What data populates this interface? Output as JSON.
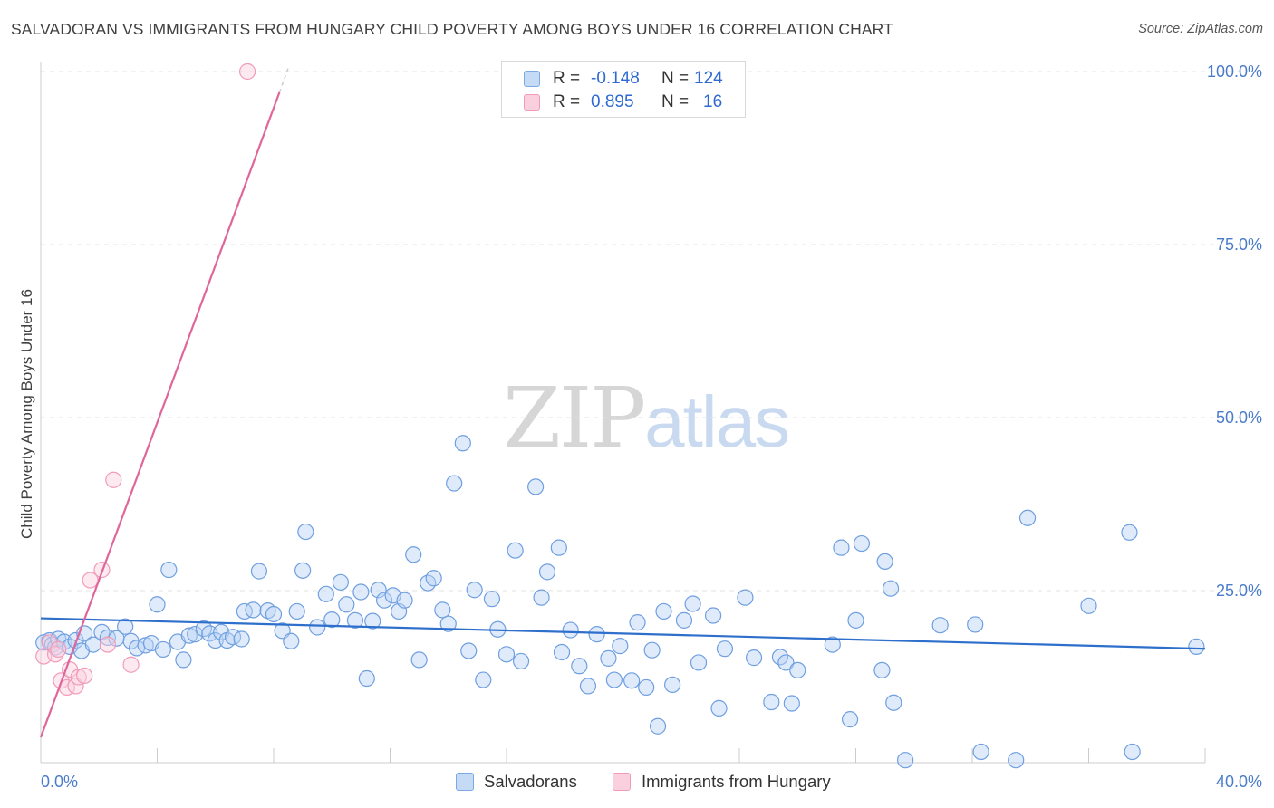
{
  "title": "SALVADORAN VS IMMIGRANTS FROM HUNGARY CHILD POVERTY AMONG BOYS UNDER 16 CORRELATION CHART",
  "source": "Source: ZipAtlas.com",
  "watermark": {
    "zip": "ZIP",
    "atlas": "atlas"
  },
  "legend": {
    "rows": [
      {
        "r_label": "R =",
        "r_value": "-0.148",
        "n_label": "N =",
        "n_value": "124",
        "color": "#7aaae6",
        "fill": "#c5daf5"
      },
      {
        "r_label": "R =",
        "r_value": "0.895",
        "n_label": "N =",
        "n_value": "16",
        "color": "#f29ab8",
        "fill": "#fbd0de"
      }
    ]
  },
  "bottom_legend": [
    "Salvadorans",
    "Immigrants from Hungary"
  ],
  "chart_data": {
    "type": "scatter",
    "title": "SALVADORAN VS IMMIGRANTS FROM HUNGARY CHILD POVERTY AMONG BOYS UNDER 16 CORRELATION CHART",
    "xlabel": "",
    "ylabel": "Child Poverty Among Boys Under 16",
    "xlim": [
      0,
      40
    ],
    "ylim": [
      0,
      105
    ],
    "x_tick_labels": [
      "0.0%",
      "40.0%"
    ],
    "y_ticks": [
      25,
      50,
      75,
      100
    ],
    "y_tick_labels": [
      "25.0%",
      "50.0%",
      "75.0%",
      "100.0%"
    ],
    "grid": true,
    "legend_position": "top-center",
    "series": [
      {
        "name": "Salvadorans",
        "color": "#6f9fe0",
        "trend": {
          "x": [
            0,
            40
          ],
          "y": [
            21.0,
            16.6
          ],
          "color": "#2e6fcc"
        },
        "points": [
          [
            0.1,
            17.5
          ],
          [
            0.3,
            17.8
          ],
          [
            0.4,
            17.2
          ],
          [
            0.5,
            16.8
          ],
          [
            0.6,
            18.0
          ],
          [
            0.8,
            17.6
          ],
          [
            1.0,
            16.9
          ],
          [
            1.2,
            17.8
          ],
          [
            1.4,
            16.3
          ],
          [
            1.5,
            18.8
          ],
          [
            1.8,
            17.2
          ],
          [
            2.1,
            19.0
          ],
          [
            2.3,
            18.2
          ],
          [
            2.6,
            18.1
          ],
          [
            2.9,
            19.8
          ],
          [
            3.1,
            17.7
          ],
          [
            3.3,
            16.7
          ],
          [
            3.6,
            17.1
          ],
          [
            3.8,
            17.4
          ],
          [
            4.0,
            23.0
          ],
          [
            4.2,
            16.5
          ],
          [
            4.4,
            28.0
          ],
          [
            4.7,
            17.6
          ],
          [
            4.9,
            15.0
          ],
          [
            5.1,
            18.5
          ],
          [
            5.3,
            18.7
          ],
          [
            5.6,
            19.5
          ],
          [
            5.8,
            18.8
          ],
          [
            6.0,
            17.8
          ],
          [
            6.2,
            19.0
          ],
          [
            6.4,
            17.8
          ],
          [
            6.6,
            18.3
          ],
          [
            6.9,
            18.0
          ],
          [
            7.0,
            22.0
          ],
          [
            7.3,
            22.2
          ],
          [
            7.5,
            27.8
          ],
          [
            7.8,
            22.1
          ],
          [
            8.0,
            21.6
          ],
          [
            8.3,
            19.2
          ],
          [
            8.6,
            17.7
          ],
          [
            8.8,
            22.0
          ],
          [
            9.0,
            27.9
          ],
          [
            9.1,
            33.5
          ],
          [
            9.5,
            19.7
          ],
          [
            9.8,
            24.5
          ],
          [
            10.0,
            20.8
          ],
          [
            10.3,
            26.2
          ],
          [
            10.5,
            23.0
          ],
          [
            10.8,
            20.7
          ],
          [
            11.0,
            24.8
          ],
          [
            11.2,
            12.3
          ],
          [
            11.4,
            20.6
          ],
          [
            11.6,
            25.1
          ],
          [
            11.8,
            23.6
          ],
          [
            12.1,
            24.3
          ],
          [
            12.3,
            22.0
          ],
          [
            12.5,
            23.6
          ],
          [
            12.8,
            30.2
          ],
          [
            13.0,
            15.0
          ],
          [
            13.3,
            26.1
          ],
          [
            13.5,
            26.8
          ],
          [
            13.8,
            22.2
          ],
          [
            14.0,
            20.2
          ],
          [
            14.2,
            40.5
          ],
          [
            14.5,
            46.3
          ],
          [
            14.7,
            16.3
          ],
          [
            14.9,
            25.1
          ],
          [
            15.2,
            12.1
          ],
          [
            15.5,
            23.8
          ],
          [
            15.7,
            19.4
          ],
          [
            16.0,
            15.8
          ],
          [
            16.3,
            30.8
          ],
          [
            16.5,
            14.8
          ],
          [
            17.0,
            40.0
          ],
          [
            17.2,
            24.0
          ],
          [
            17.4,
            27.7
          ],
          [
            17.8,
            31.2
          ],
          [
            17.9,
            16.1
          ],
          [
            18.2,
            19.3
          ],
          [
            18.5,
            14.1
          ],
          [
            18.8,
            11.2
          ],
          [
            19.1,
            18.7
          ],
          [
            19.5,
            15.2
          ],
          [
            19.7,
            12.1
          ],
          [
            19.9,
            17.0
          ],
          [
            20.3,
            12.0
          ],
          [
            20.5,
            20.4
          ],
          [
            20.8,
            11.0
          ],
          [
            21.0,
            16.4
          ],
          [
            21.2,
            5.4
          ],
          [
            21.4,
            22.0
          ],
          [
            21.7,
            11.4
          ],
          [
            22.1,
            20.7
          ],
          [
            22.4,
            23.1
          ],
          [
            22.6,
            14.6
          ],
          [
            23.1,
            21.4
          ],
          [
            23.3,
            8.0
          ],
          [
            23.5,
            16.6
          ],
          [
            24.2,
            24.0
          ],
          [
            24.5,
            15.3
          ],
          [
            25.1,
            8.9
          ],
          [
            25.4,
            15.4
          ],
          [
            25.6,
            14.6
          ],
          [
            25.8,
            8.7
          ],
          [
            26.0,
            13.5
          ],
          [
            27.2,
            17.2
          ],
          [
            27.5,
            31.2
          ],
          [
            27.8,
            6.4
          ],
          [
            28.0,
            20.7
          ],
          [
            28.2,
            31.8
          ],
          [
            28.9,
            13.5
          ],
          [
            29.0,
            29.2
          ],
          [
            29.2,
            25.3
          ],
          [
            29.3,
            8.8
          ],
          [
            29.7,
            0.5
          ],
          [
            30.9,
            20.0
          ],
          [
            32.1,
            20.1
          ],
          [
            32.3,
            1.7
          ],
          [
            33.5,
            0.5
          ],
          [
            33.9,
            35.5
          ],
          [
            36.0,
            22.8
          ],
          [
            37.4,
            33.4
          ],
          [
            37.5,
            1.7
          ],
          [
            39.7,
            16.9
          ]
        ]
      },
      {
        "name": "Immigrants from Hungary",
        "color": "#f29ab8",
        "trend": {
          "x": [
            0.0,
            8.2
          ],
          "y": [
            3.8,
            97.0
          ],
          "dash_to": [
            8.5,
            100.5
          ],
          "color": "#e0669a"
        },
        "points": [
          [
            0.1,
            15.5
          ],
          [
            0.3,
            17.5
          ],
          [
            0.5,
            15.8
          ],
          [
            0.6,
            16.5
          ],
          [
            0.7,
            12.0
          ],
          [
            0.9,
            11.0
          ],
          [
            1.0,
            13.6
          ],
          [
            1.2,
            11.2
          ],
          [
            1.3,
            12.5
          ],
          [
            1.5,
            12.7
          ],
          [
            1.7,
            26.5
          ],
          [
            2.1,
            28.0
          ],
          [
            2.3,
            17.2
          ],
          [
            2.5,
            41.0
          ],
          [
            3.1,
            14.3
          ],
          [
            7.1,
            100.0
          ]
        ]
      }
    ]
  }
}
